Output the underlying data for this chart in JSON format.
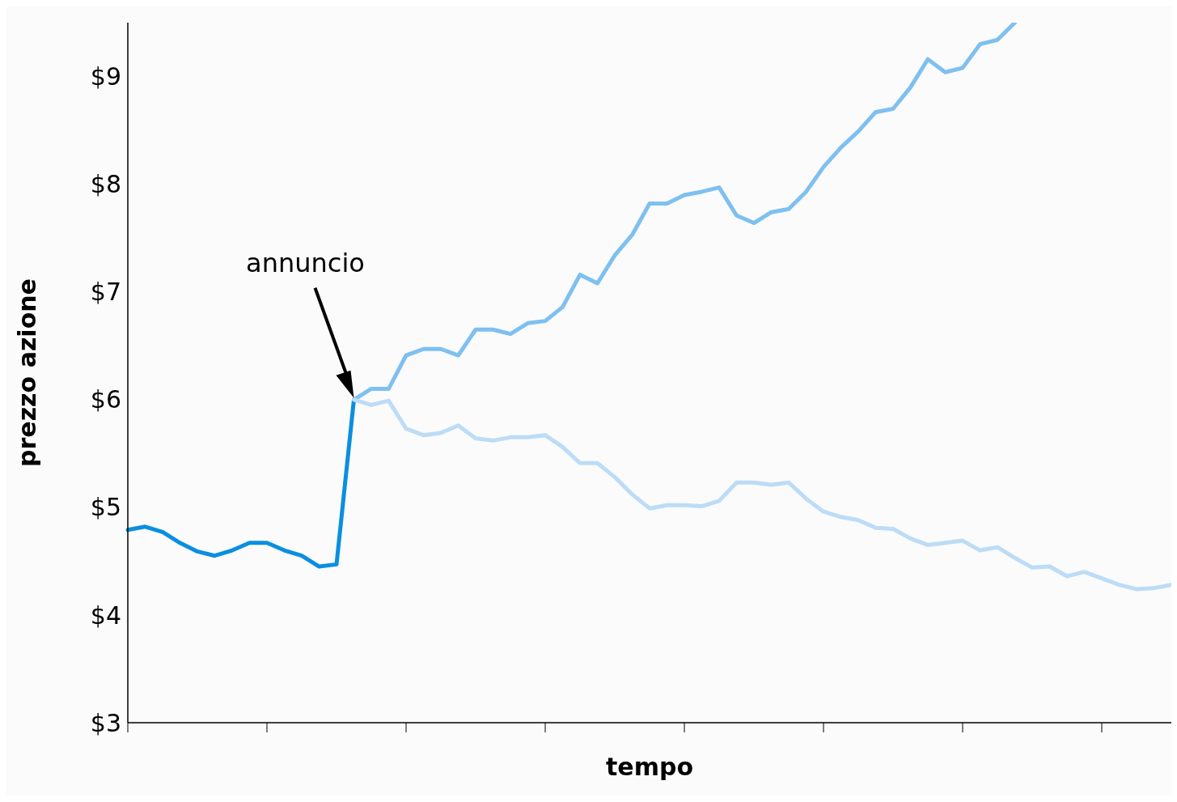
{
  "chart_data": {
    "type": "line",
    "xlabel": "tempo",
    "ylabel": "prezzo azione",
    "categories": [
      null,
      null,
      null,
      null,
      null,
      null,
      null,
      null,
      null,
      null,
      null,
      null,
      null,
      null,
      null,
      null,
      null,
      null,
      null,
      null,
      null,
      null,
      null,
      null,
      null,
      null,
      null,
      null,
      null,
      null,
      null,
      null,
      null,
      null,
      null,
      null,
      null,
      null,
      null,
      null,
      null,
      null,
      null,
      null,
      null,
      null,
      null,
      null,
      null,
      null,
      null,
      null,
      null,
      null,
      null,
      null,
      null,
      null,
      null,
      null,
      null
    ],
    "series": [
      {
        "color": "#0a8fe0",
        "values": [
          4.79,
          4.82,
          4.77,
          4.67,
          4.59,
          4.55,
          4.6,
          4.67,
          4.67,
          4.6,
          4.55,
          4.45,
          4.47,
          6.0,
          null,
          null,
          null,
          null,
          null,
          null,
          null,
          null,
          null,
          null,
          null,
          null,
          null,
          null,
          null,
          null,
          null,
          null,
          null,
          null,
          null,
          null,
          null,
          null,
          null,
          null,
          null,
          null,
          null,
          null,
          null,
          null,
          null,
          null,
          null,
          null,
          null,
          null,
          null,
          null,
          null,
          null,
          null,
          null,
          null,
          null,
          null
        ]
      },
      {
        "color": "#7ec0f0",
        "values": [
          null,
          null,
          null,
          null,
          null,
          null,
          null,
          null,
          null,
          null,
          null,
          null,
          null,
          6.0,
          6.1,
          6.1,
          6.41,
          6.47,
          6.47,
          6.41,
          6.65,
          6.65,
          6.61,
          6.71,
          6.73,
          6.86,
          7.16,
          7.08,
          7.34,
          7.53,
          7.82,
          7.82,
          7.9,
          7.93,
          7.97,
          7.71,
          7.64,
          7.74,
          7.77,
          7.93,
          8.16,
          8.34,
          8.49,
          8.67,
          8.7,
          8.9,
          9.16,
          9.04,
          9.08,
          9.3,
          9.34,
          9.5,
          null,
          null,
          null,
          null,
          null,
          null,
          null,
          null,
          null
        ]
      },
      {
        "color": "#bcdcf7",
        "values": [
          null,
          null,
          null,
          null,
          null,
          null,
          null,
          null,
          null,
          null,
          null,
          null,
          null,
          6.0,
          5.95,
          5.99,
          5.73,
          5.67,
          5.69,
          5.76,
          5.64,
          5.62,
          5.65,
          5.65,
          5.67,
          5.56,
          5.41,
          5.41,
          5.28,
          5.12,
          4.99,
          5.02,
          5.02,
          5.01,
          5.06,
          5.23,
          5.23,
          5.21,
          5.23,
          5.08,
          4.96,
          4.91,
          4.88,
          4.81,
          4.8,
          4.71,
          4.65,
          4.67,
          4.69,
          4.6,
          4.63,
          4.53,
          4.44,
          4.45,
          4.36,
          4.4,
          4.34,
          4.28,
          4.24,
          4.25,
          4.28
        ]
      }
    ],
    "ylim": [
      3,
      9.5
    ],
    "yticks": [
      {
        "value": 3,
        "label": "$3"
      },
      {
        "value": 4,
        "label": "$4"
      },
      {
        "value": 5,
        "label": "$5"
      },
      {
        "value": 6,
        "label": "$6"
      },
      {
        "value": 7,
        "label": "$7"
      },
      {
        "value": 8,
        "label": "$8"
      },
      {
        "value": 9,
        "label": "$9"
      }
    ],
    "annotations": [
      "annuncio"
    ],
    "grid": false,
    "legend": false,
    "marker": "none",
    "line_style": "solid"
  }
}
